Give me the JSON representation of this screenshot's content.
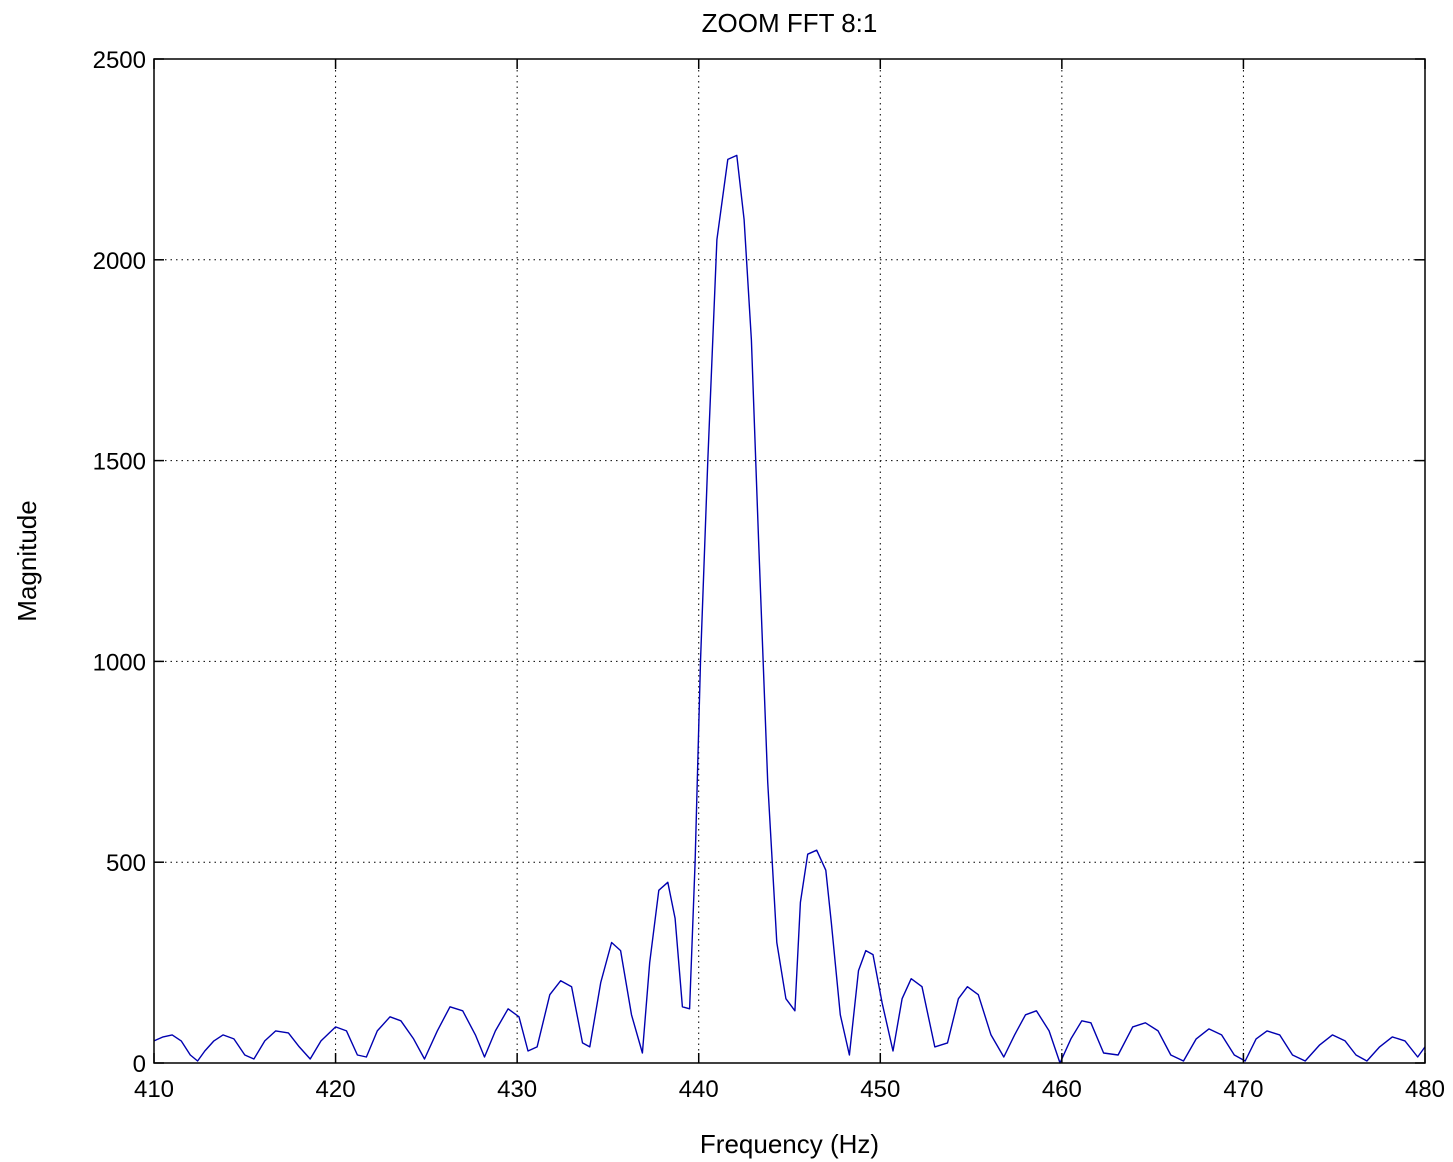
{
  "chart_data": {
    "type": "line",
    "title": "ZOOM FFT  8:1",
    "xlabel": "Frequency (Hz)",
    "ylabel": "Magnitude",
    "xlim": [
      410,
      480
    ],
    "ylim": [
      0,
      2500
    ],
    "grid": true,
    "x_ticks": [
      410,
      420,
      430,
      440,
      450,
      460,
      470,
      480
    ],
    "y_ticks": [
      0,
      500,
      1000,
      1500,
      2000,
      2500
    ],
    "line_color": "#0000b0",
    "series": [
      {
        "x": [
          410.0,
          410.5,
          411.0,
          411.5,
          412.0,
          412.4,
          412.8,
          413.3,
          413.8,
          414.4,
          415.0,
          415.5,
          416.1,
          416.7,
          417.4,
          418.0,
          418.6,
          419.2,
          420.0,
          420.6,
          421.2,
          421.7,
          422.3,
          423.0,
          423.6,
          424.3,
          424.9,
          425.6,
          426.3,
          427.0,
          427.7,
          428.2,
          428.8,
          429.5,
          430.1,
          430.6,
          431.1,
          431.8,
          432.4,
          433.0,
          433.6,
          434.0,
          434.6,
          435.2,
          435.7,
          436.3,
          436.9,
          437.3,
          437.8,
          438.3,
          438.7,
          439.1,
          439.5,
          439.8,
          440.1,
          440.5,
          441.0,
          441.6,
          442.1,
          442.5,
          442.9,
          443.3,
          443.8,
          444.3,
          444.8,
          445.3,
          445.6,
          446.0,
          446.5,
          447.0,
          447.3,
          447.8,
          448.3,
          448.8,
          449.2,
          449.6,
          450.1,
          450.7,
          451.2,
          451.7,
          452.3,
          453.0,
          453.7,
          454.3,
          454.8,
          455.4,
          456.1,
          456.8,
          457.4,
          458.0,
          458.6,
          459.3,
          459.9,
          460.5,
          461.1,
          461.6,
          462.3,
          463.1,
          463.9,
          464.6,
          465.3,
          466.0,
          466.7,
          467.4,
          468.1,
          468.8,
          469.5,
          470.1,
          470.7,
          471.3,
          472.0,
          472.7,
          473.4,
          474.2,
          474.9,
          475.6,
          476.2,
          476.8,
          477.5,
          478.2,
          478.9,
          479.6,
          480.0
        ],
        "y": [
          55,
          65,
          70,
          55,
          20,
          5,
          30,
          55,
          70,
          60,
          20,
          10,
          55,
          80,
          75,
          40,
          10,
          55,
          90,
          80,
          20,
          15,
          80,
          115,
          105,
          60,
          10,
          80,
          140,
          130,
          70,
          15,
          80,
          135,
          115,
          30,
          40,
          170,
          205,
          190,
          50,
          40,
          200,
          300,
          280,
          120,
          25,
          250,
          430,
          450,
          360,
          140,
          135,
          500,
          1000,
          1500,
          2050,
          2250,
          2260,
          2100,
          1800,
          1300,
          700,
          300,
          160,
          130,
          400,
          520,
          530,
          480,
          350,
          120,
          20,
          230,
          280,
          270,
          150,
          30,
          160,
          210,
          190,
          40,
          50,
          160,
          190,
          170,
          70,
          15,
          70,
          120,
          130,
          80,
          0,
          60,
          105,
          100,
          25,
          20,
          90,
          100,
          80,
          20,
          5,
          60,
          85,
          70,
          20,
          5,
          60,
          80,
          70,
          20,
          5,
          45,
          70,
          55,
          20,
          5,
          40,
          65,
          55,
          15,
          40
        ]
      }
    ]
  }
}
